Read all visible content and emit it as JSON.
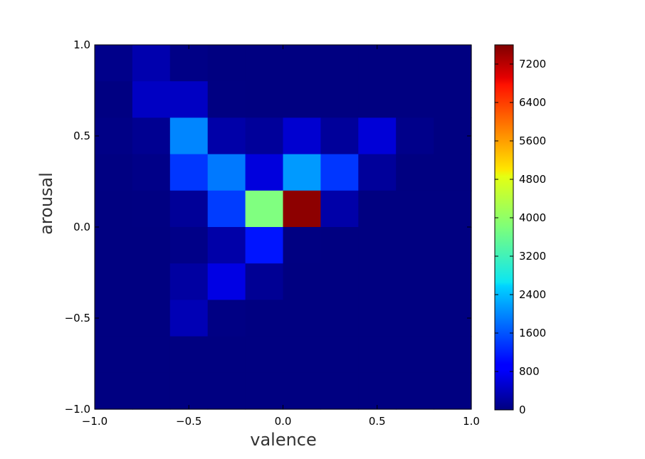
{
  "chart_data": {
    "type": "heatmap",
    "title": "",
    "xlabel": "valence",
    "ylabel": "arousal",
    "xlim": [
      -1.0,
      1.0
    ],
    "ylim": [
      -1.0,
      1.0
    ],
    "x_ticks": [
      "−1.0",
      "−0.5",
      "0.0",
      "0.5",
      "1.0"
    ],
    "y_ticks": [
      "−1.0",
      "−0.5",
      "0.0",
      "0.5",
      "1.0"
    ],
    "x_bin_edges": [
      -1.0,
      -0.8,
      -0.6,
      -0.4,
      -0.2,
      0.0,
      0.2,
      0.4,
      0.6,
      0.8,
      1.0
    ],
    "y_bin_edges": [
      -1.0,
      -0.8,
      -0.6,
      -0.4,
      -0.2,
      0.0,
      0.2,
      0.4,
      0.6,
      0.8,
      1.0
    ],
    "values_rows_top_to_bottom": [
      [
        80,
        350,
        50,
        10,
        10,
        10,
        10,
        10,
        10,
        10
      ],
      [
        20,
        500,
        500,
        20,
        10,
        10,
        10,
        10,
        10,
        10
      ],
      [
        50,
        130,
        1950,
        300,
        200,
        600,
        200,
        650,
        80,
        10
      ],
      [
        20,
        60,
        1350,
        1850,
        700,
        2100,
        1350,
        200,
        10,
        10
      ],
      [
        10,
        20,
        180,
        1400,
        3800,
        7500,
        300,
        10,
        10,
        10
      ],
      [
        10,
        10,
        60,
        300,
        1100,
        20,
        10,
        10,
        10,
        10
      ],
      [
        10,
        10,
        250,
        750,
        150,
        10,
        10,
        10,
        10,
        10
      ],
      [
        10,
        10,
        400,
        30,
        10,
        10,
        10,
        10,
        10,
        10
      ],
      [
        10,
        10,
        10,
        10,
        10,
        10,
        10,
        10,
        10,
        10
      ],
      [
        10,
        10,
        10,
        10,
        10,
        10,
        10,
        10,
        10,
        10
      ]
    ],
    "colormap": "jet",
    "colorbar": {
      "min": 0,
      "max": 7600,
      "ticks": [
        0,
        800,
        1600,
        2400,
        3200,
        4000,
        4800,
        5600,
        6400,
        7200
      ],
      "tick_labels": [
        "0",
        "800",
        "1600",
        "2400",
        "3200",
        "4000",
        "4800",
        "5600",
        "6400",
        "7200"
      ]
    },
    "grid": false,
    "legend": "none"
  }
}
